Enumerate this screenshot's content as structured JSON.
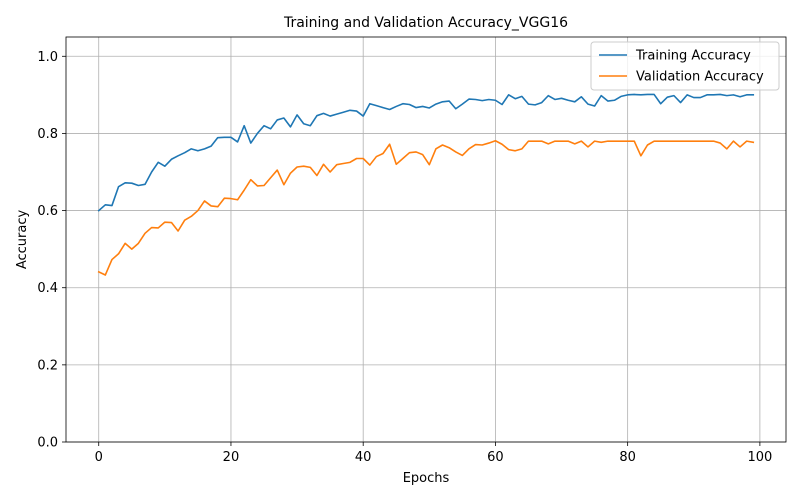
{
  "chart_data": {
    "type": "line",
    "title": "Training and Validation Accuracy_VGG16",
    "xlabel": "Epochs",
    "ylabel": "Accuracy",
    "xlim": [
      -4.95,
      103.95
    ],
    "ylim": [
      0.0,
      1.05
    ],
    "xticks": [
      0,
      20,
      40,
      60,
      80,
      100
    ],
    "yticks": [
      0.0,
      0.2,
      0.4,
      0.6,
      0.8,
      1.0
    ],
    "xtick_labels": [
      "0",
      "20",
      "40",
      "60",
      "80",
      "100"
    ],
    "ytick_labels": [
      "0.0",
      "0.2",
      "0.4",
      "0.6",
      "0.8",
      "1.0"
    ],
    "grid": true,
    "legend_position": "top-right",
    "x": [
      0,
      1,
      2,
      3,
      4,
      5,
      6,
      7,
      8,
      9,
      10,
      11,
      12,
      13,
      14,
      15,
      16,
      17,
      18,
      19,
      20,
      21,
      22,
      23,
      24,
      25,
      26,
      27,
      28,
      29,
      30,
      31,
      32,
      33,
      34,
      35,
      36,
      37,
      38,
      39,
      40,
      41,
      42,
      43,
      44,
      45,
      46,
      47,
      48,
      49,
      50,
      51,
      52,
      53,
      54,
      55,
      56,
      57,
      58,
      59,
      60,
      61,
      62,
      63,
      64,
      65,
      66,
      67,
      68,
      69,
      70,
      71,
      72,
      73,
      74,
      75,
      76,
      77,
      78,
      79,
      80,
      81,
      82,
      83,
      84,
      85,
      86,
      87,
      88,
      89,
      90,
      91,
      92,
      93,
      94,
      95,
      96,
      97,
      98,
      99
    ],
    "series": [
      {
        "name": "Training Accuracy",
        "color": "#1f77b4",
        "values": [
          0.6,
          0.615,
          0.613,
          0.662,
          0.672,
          0.671,
          0.665,
          0.668,
          0.7,
          0.725,
          0.715,
          0.733,
          0.742,
          0.75,
          0.76,
          0.755,
          0.76,
          0.767,
          0.789,
          0.79,
          0.79,
          0.778,
          0.82,
          0.775,
          0.8,
          0.82,
          0.812,
          0.835,
          0.84,
          0.817,
          0.848,
          0.825,
          0.82,
          0.846,
          0.852,
          0.845,
          0.85,
          0.855,
          0.86,
          0.858,
          0.845,
          0.877,
          0.872,
          0.867,
          0.862,
          0.87,
          0.877,
          0.875,
          0.867,
          0.87,
          0.866,
          0.876,
          0.882,
          0.884,
          0.864,
          0.876,
          0.889,
          0.888,
          0.885,
          0.888,
          0.886,
          0.875,
          0.9,
          0.89,
          0.896,
          0.876,
          0.874,
          0.88,
          0.898,
          0.888,
          0.891,
          0.886,
          0.882,
          0.895,
          0.876,
          0.871,
          0.898,
          0.884,
          0.886,
          0.896,
          0.9,
          0.901,
          0.9,
          0.901,
          0.901,
          0.877,
          0.894,
          0.898,
          0.88,
          0.9,
          0.893,
          0.893,
          0.9,
          0.9,
          0.901,
          0.898,
          0.9,
          0.895,
          0.9,
          0.9
        ]
      },
      {
        "name": "Validation Accuracy",
        "color": "#ff7f0e",
        "values": [
          0.441,
          0.433,
          0.473,
          0.488,
          0.515,
          0.5,
          0.515,
          0.541,
          0.556,
          0.555,
          0.57,
          0.569,
          0.547,
          0.575,
          0.585,
          0.6,
          0.625,
          0.612,
          0.61,
          0.632,
          0.631,
          0.628,
          0.653,
          0.68,
          0.664,
          0.665,
          0.685,
          0.705,
          0.667,
          0.697,
          0.713,
          0.715,
          0.712,
          0.691,
          0.72,
          0.7,
          0.719,
          0.722,
          0.725,
          0.735,
          0.735,
          0.718,
          0.74,
          0.748,
          0.772,
          0.72,
          0.735,
          0.75,
          0.752,
          0.745,
          0.719,
          0.76,
          0.77,
          0.763,
          0.752,
          0.743,
          0.76,
          0.771,
          0.77,
          0.775,
          0.781,
          0.772,
          0.758,
          0.755,
          0.76,
          0.78,
          0.78,
          0.78,
          0.773,
          0.78,
          0.78,
          0.78,
          0.773,
          0.78,
          0.765,
          0.78,
          0.777,
          0.78,
          0.78,
          0.78,
          0.78,
          0.78,
          0.742,
          0.77,
          0.78,
          0.78,
          0.78,
          0.78,
          0.78,
          0.78,
          0.78,
          0.78,
          0.78,
          0.78,
          0.775,
          0.76,
          0.78,
          0.765,
          0.78,
          0.777
        ]
      }
    ]
  }
}
